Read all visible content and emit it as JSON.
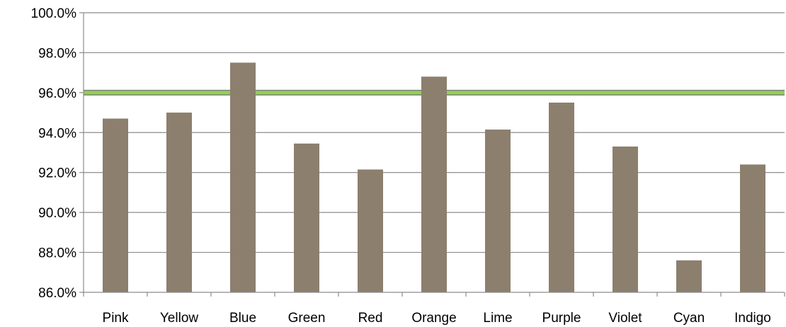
{
  "chart_data": {
    "type": "bar",
    "categories": [
      "Pink",
      "Yellow",
      "Blue",
      "Green",
      "Red",
      "Orange",
      "Lime",
      "Purple",
      "Violet",
      "Cyan",
      "Indigo"
    ],
    "values": [
      94.7,
      95.0,
      97.5,
      93.45,
      92.15,
      96.8,
      94.15,
      95.5,
      93.3,
      87.6,
      92.4
    ],
    "ylim": [
      86.0,
      100.0
    ],
    "yticks": [
      "86.0%",
      "88.0%",
      "90.0%",
      "92.0%",
      "94.0%",
      "96.0%",
      "98.0%",
      "100.0%"
    ],
    "ytick_values": [
      86,
      88,
      90,
      92,
      94,
      96,
      98,
      100
    ],
    "reference_line": {
      "value": 96.0,
      "color": "#92d050",
      "edge_color": "#7f7f7f"
    },
    "bar_color": "#8c7f6e",
    "grid": true,
    "legend": "none",
    "title": "",
    "xlabel": "",
    "ylabel": ""
  }
}
